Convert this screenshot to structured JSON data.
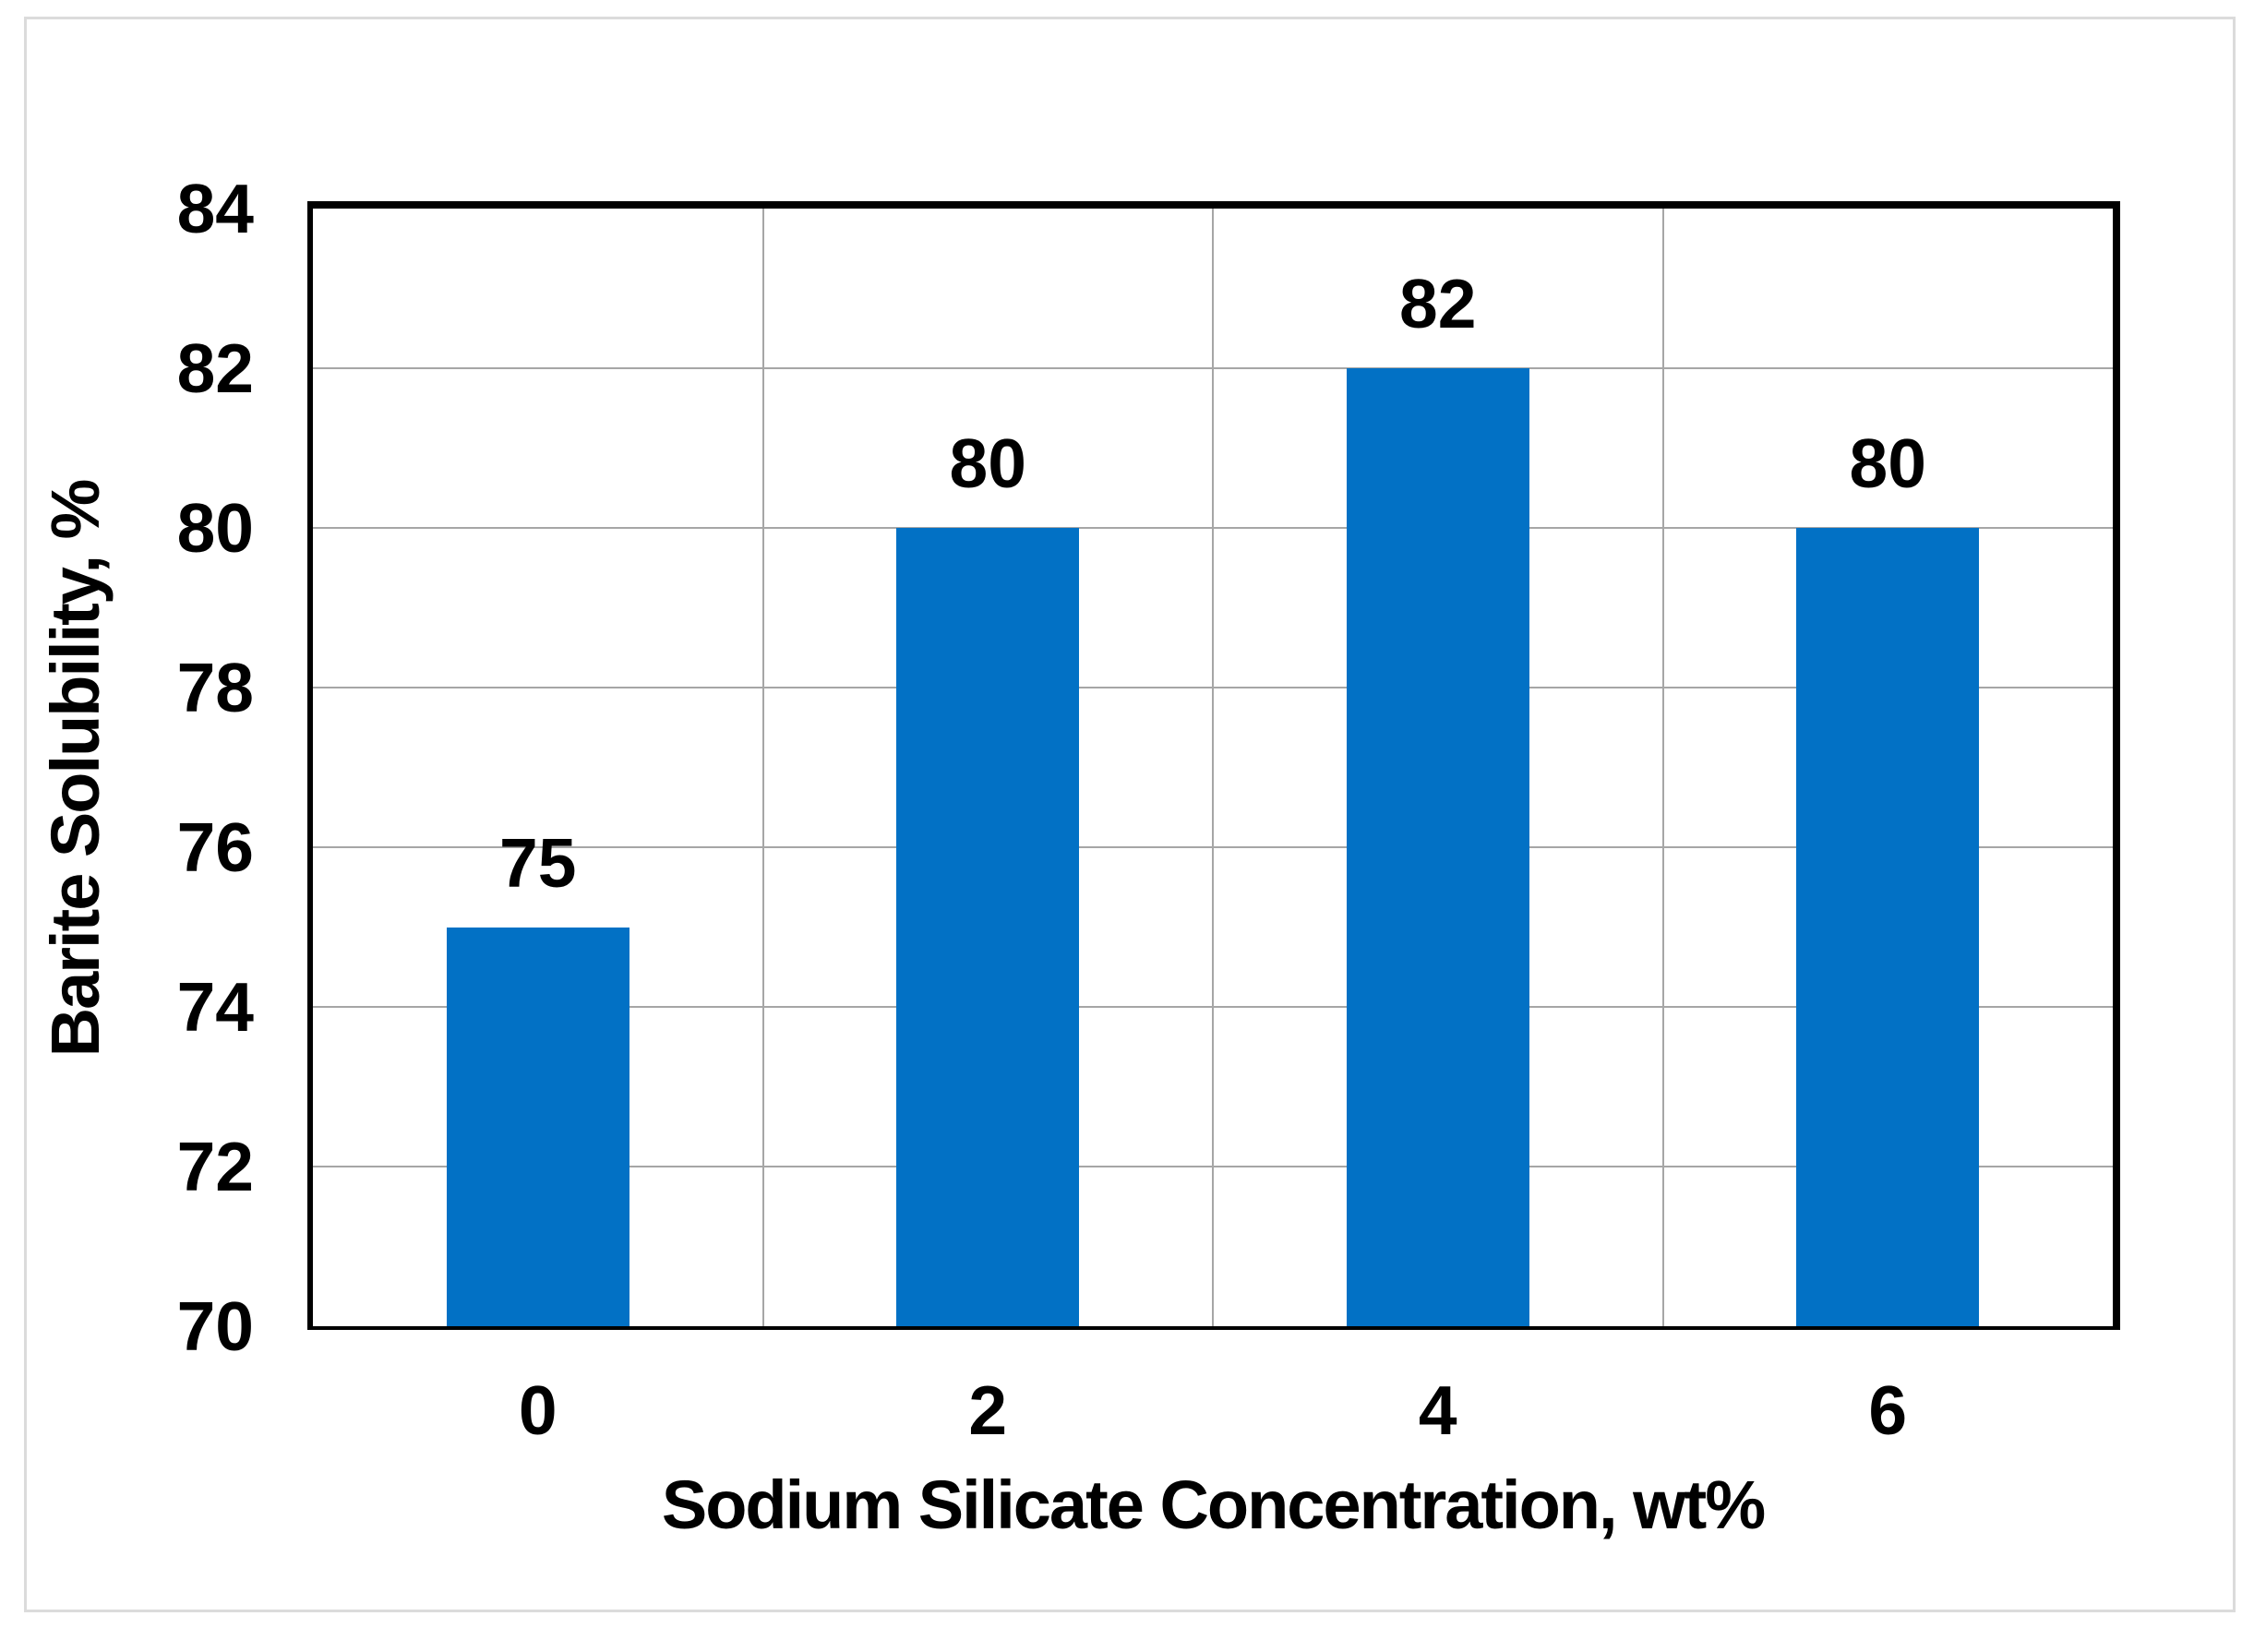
{
  "figure": {
    "background": "#FFFFFF",
    "frame_color": "#DBDBDB"
  },
  "chart_data": {
    "type": "bar",
    "title": "",
    "categories": [
      "0",
      "2",
      "4",
      "6"
    ],
    "values": [
      75,
      80,
      82,
      80
    ],
    "data_labels": [
      "75",
      "80",
      "82",
      "80"
    ],
    "xlabel": "Sodium Silicate Concentration, wt%",
    "ylabel": "Barite Solubility, %",
    "ylim": [
      70,
      84
    ],
    "yticks": [
      84,
      82,
      80,
      78,
      76,
      74,
      72,
      70
    ],
    "grid": true,
    "legend": "none",
    "bar_color": "#0271C5",
    "gridline_color": "#A6A6A6",
    "axis_color": "#000000",
    "text_color": "#000000"
  }
}
